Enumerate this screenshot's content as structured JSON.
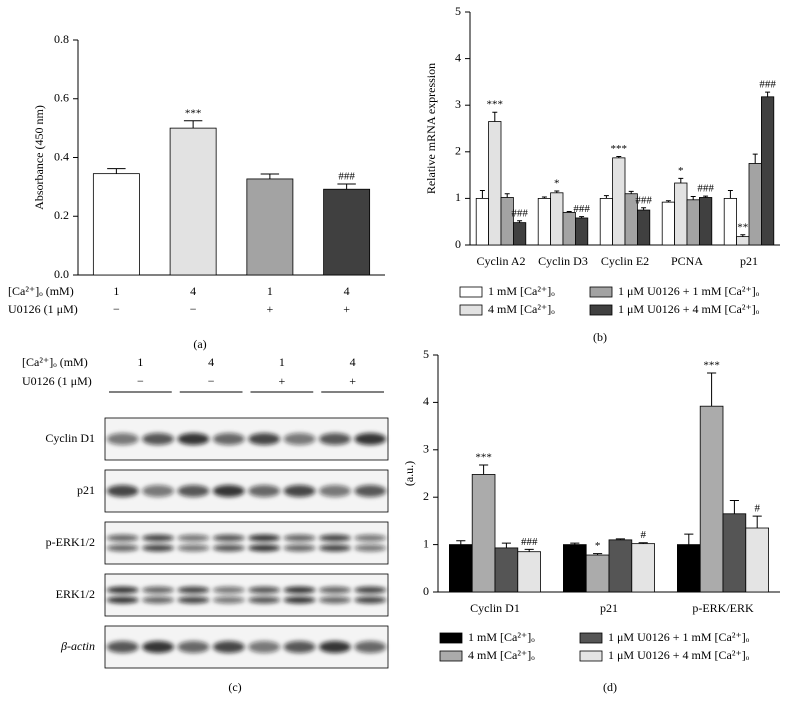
{
  "chart_data": [
    {
      "type": "bar",
      "panel_label": "(a)",
      "ylabel": "Absorbance (450 nm)",
      "ylim": [
        0,
        0.8
      ],
      "yticks": [
        {
          "value": 0,
          "label": "0.0"
        },
        0.2,
        0.4,
        0.6,
        0.8
      ],
      "row_labels": [
        "[Ca²⁺]ₒ (mM)",
        "U0126 (1 μM)"
      ],
      "categories": [
        "1",
        "4",
        "1",
        "4"
      ],
      "categories2": [
        "−",
        "−",
        "+",
        "+"
      ],
      "values": [
        0.345,
        0.5,
        0.327,
        0.292
      ],
      "errors": [
        0.017,
        0.025,
        0.017,
        0.018
      ],
      "colors": [
        "#ffffff",
        "#e2e2e2",
        "#a3a3a3",
        "#404040"
      ],
      "annotations": [
        null,
        "***",
        null,
        "###"
      ]
    },
    {
      "type": "bar",
      "panel_label": "(b)",
      "ylabel": "Relative mRNA expression",
      "ylim": [
        0,
        5
      ],
      "yticks": [
        0,
        1,
        2,
        3,
        4,
        5
      ],
      "categories": [
        "Cyclin A2",
        "Cyclin D3",
        "Cyclin E2",
        "PCNA",
        "p21"
      ],
      "series": [
        {
          "name": "1 mM [Ca²⁺]ₒ",
          "color": "#ffffff",
          "values": [
            1.0,
            1.0,
            1.0,
            0.92,
            1.0
          ],
          "errors": [
            0.17,
            0.03,
            0.06,
            0.03,
            0.17
          ]
        },
        {
          "name": "4 mM [Ca²⁺]ₒ",
          "color": "#e2e2e2",
          "values": [
            2.65,
            1.12,
            1.87,
            1.33,
            0.18
          ],
          "errors": [
            0.2,
            0.04,
            0.03,
            0.1,
            0.04
          ],
          "annotations": [
            "***",
            "*",
            "***",
            "*",
            "**"
          ]
        },
        {
          "name": "1 μM U0126 + 1 mM [Ca²⁺]ₒ",
          "color": "#a3a3a3",
          "values": [
            1.02,
            0.7,
            1.1,
            0.97,
            1.75
          ],
          "errors": [
            0.08,
            0.02,
            0.05,
            0.07,
            0.2
          ]
        },
        {
          "name": "1 μM U0126 + 4 mM [Ca²⁺]ₒ",
          "color": "#404040",
          "values": [
            0.48,
            0.58,
            0.75,
            1.02,
            3.18
          ],
          "errors": [
            0.04,
            0.03,
            0.05,
            0.03,
            0.1
          ],
          "annotations": [
            "###",
            "###",
            "###",
            "###",
            "###"
          ]
        }
      ]
    },
    {
      "type": "bar",
      "panel_label": "(d)",
      "ylabel": "(a.u.)",
      "ylim": [
        0,
        5
      ],
      "yticks": [
        0,
        1,
        2,
        3,
        4,
        5
      ],
      "categories": [
        "Cyclin D1",
        "p21",
        "p-ERK/ERK"
      ],
      "series": [
        {
          "name": "1 mM [Ca²⁺]ₒ",
          "color": "#000000",
          "values": [
            1.0,
            1.0,
            1.0
          ],
          "errors": [
            0.08,
            0.03,
            0.22
          ]
        },
        {
          "name": "4 mM [Ca²⁺]ₒ",
          "color": "#ababab",
          "values": [
            2.48,
            0.78,
            3.92
          ],
          "errors": [
            0.2,
            0.03,
            0.7
          ],
          "annotations": [
            "***",
            "*",
            "***"
          ]
        },
        {
          "name": "1 μM U0126 + 1 mM [Ca²⁺]ₒ",
          "color": "#555555",
          "values": [
            0.93,
            1.1,
            1.65
          ],
          "errors": [
            0.1,
            0.02,
            0.28
          ]
        },
        {
          "name": "1 μM U0126 + 4 mM [Ca²⁺]ₒ",
          "color": "#e4e4e4",
          "values": [
            0.85,
            1.02,
            1.35
          ],
          "errors": [
            0.05,
            0.02,
            0.25
          ],
          "annotations": [
            "###",
            "#",
            "#"
          ]
        }
      ]
    }
  ],
  "blot": {
    "panel_label": "(c)",
    "header_labels": [
      "[Ca²⁺]ₒ (mM)",
      "U0126 (1 μM)"
    ],
    "groups": [
      "1",
      "4",
      "1",
      "4"
    ],
    "groups2": [
      "−",
      "−",
      "+",
      "+"
    ],
    "rows": [
      "Cyclin D1",
      "p21",
      "p-ERK1/2",
      "ERK1/2",
      "β-actin"
    ]
  }
}
